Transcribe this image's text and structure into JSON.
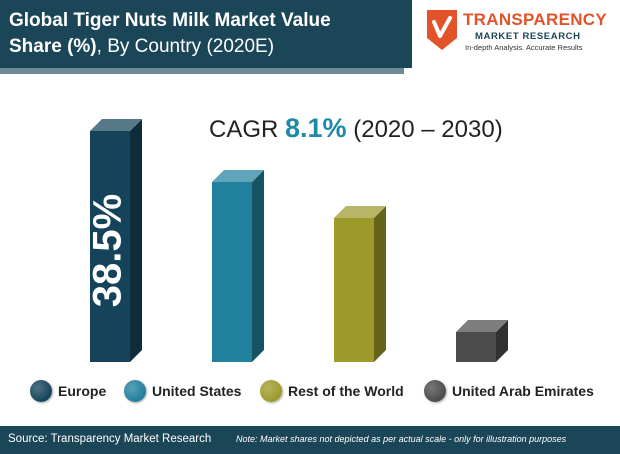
{
  "header": {
    "title_line1": "Global Tiger Nuts Milk Market Value",
    "title_line2_bold": "Share (%)",
    "title_line2_rest": ", By Country (2020E)"
  },
  "logo": {
    "word": "TRANSPARENCY",
    "sub": "MARKET RESEARCH",
    "tagline": "In-depth Analysis. Accurate Results"
  },
  "cagr": {
    "prefix": "CAGR ",
    "value": "8.1%",
    "period": " (2020 – 2030)"
  },
  "chart_data": {
    "type": "bar",
    "title": "Global Tiger Nuts Milk Market Value Share (%), By Country (2020E)",
    "categories": [
      "Europe",
      "United States",
      "Rest of the World",
      "United Arab Emirates"
    ],
    "values": [
      38.5,
      30,
      24,
      5
    ],
    "labels": [
      "38.5%",
      "",
      "",
      ""
    ],
    "colors": [
      "#15435a",
      "#21809c",
      "#9d9a2a",
      "#4b4b4b"
    ],
    "ylim": [
      0,
      40
    ],
    "grid": false,
    "legend": "bottom"
  },
  "footer": {
    "source": "Source: Transparency Market Research",
    "note": "Note: Market shares not depicted as per actual scale - only for illustration purposes"
  }
}
